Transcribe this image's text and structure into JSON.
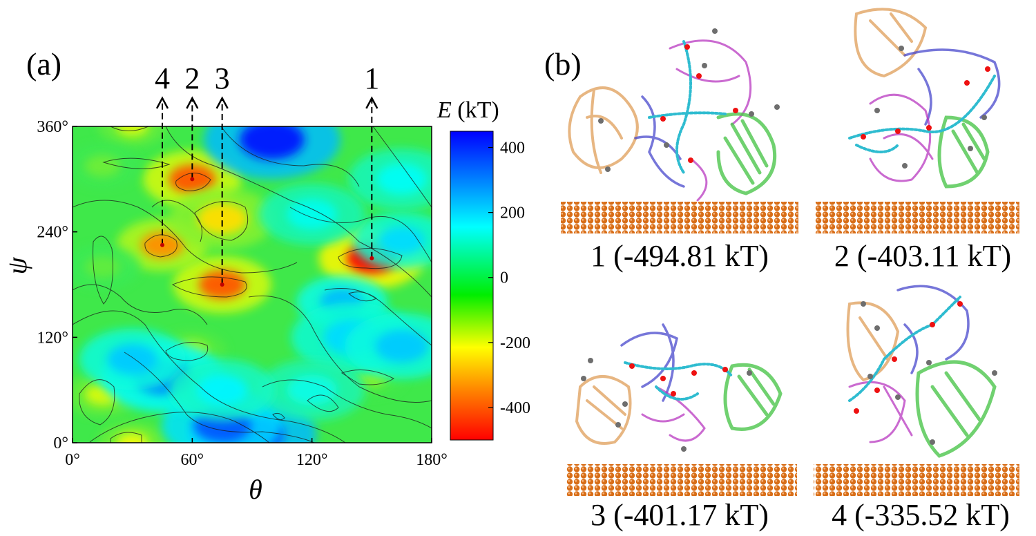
{
  "panels": {
    "a": "(a)",
    "b": "(b)"
  },
  "chart_data": {
    "type": "heatmap",
    "xlabel": "θ",
    "ylabel": "ψ",
    "xlim": [
      0,
      180
    ],
    "ylim": [
      0,
      360
    ],
    "x_ticks": [
      "0°",
      "60°",
      "120°",
      "180°"
    ],
    "x_tick_values": [
      0,
      60,
      120,
      180
    ],
    "y_ticks": [
      "0°",
      "120°",
      "240°",
      "360°"
    ],
    "y_tick_values": [
      0,
      120,
      240,
      360
    ],
    "colorbar": {
      "title_var": "E",
      "title_unit": " (kT)",
      "range": [
        -500,
        450
      ],
      "ticks": [
        "400",
        "200",
        "0",
        "-200",
        "-400"
      ],
      "tick_values": [
        400,
        200,
        0,
        -200,
        -400
      ],
      "colors": [
        "#ff0000",
        "#ff8c00",
        "#ffff00",
        "#00ee00",
        "#00ffff",
        "#0000ff"
      ]
    },
    "features": [
      {
        "theta": 150,
        "psi": 210,
        "energy": -494.81,
        "r": 14
      },
      {
        "theta": 60,
        "psi": 300,
        "energy": -403.11,
        "r": 13
      },
      {
        "theta": 75,
        "psi": 180,
        "energy": -401.17,
        "r": 13
      },
      {
        "theta": 45,
        "psi": 225,
        "energy": -335.52,
        "r": 12
      },
      {
        "theta": 75,
        "psi": 255,
        "energy": -250,
        "r": 14
      },
      {
        "theta": 15,
        "psi": 55,
        "energy": -180,
        "r": 10
      },
      {
        "theta": 30,
        "psi": 0,
        "energy": -200,
        "r": 9
      },
      {
        "theta": 30,
        "psi": 360,
        "energy": -180,
        "r": 9
      },
      {
        "theta": 60,
        "psi": 105,
        "energy": -150,
        "r": 9
      },
      {
        "theta": 15,
        "psi": 200,
        "energy": -80,
        "r": 10
      },
      {
        "theta": 15,
        "psi": 315,
        "energy": -90,
        "r": 10
      },
      {
        "theta": 150,
        "psi": 75,
        "energy": -120,
        "r": 9
      },
      {
        "theta": 100,
        "psi": 345,
        "energy": 430,
        "r": 18
      },
      {
        "theta": 90,
        "psi": 10,
        "energy": 430,
        "r": 17
      },
      {
        "theta": 75,
        "psi": 20,
        "energy": 350,
        "r": 16
      },
      {
        "theta": 45,
        "psi": 75,
        "energy": 300,
        "r": 16
      },
      {
        "theta": 30,
        "psi": 95,
        "energy": 220,
        "r": 14
      },
      {
        "theta": 135,
        "psi": 160,
        "energy": 240,
        "r": 12
      },
      {
        "theta": 165,
        "psi": 230,
        "energy": 200,
        "r": 13
      },
      {
        "theta": 140,
        "psi": 120,
        "energy": 200,
        "r": 16
      },
      {
        "theta": 165,
        "psi": 110,
        "energy": 220,
        "r": 15
      },
      {
        "theta": 165,
        "psi": 300,
        "energy": 150,
        "r": 14
      },
      {
        "theta": 120,
        "psi": 260,
        "energy": 140,
        "r": 14
      },
      {
        "theta": 120,
        "psi": 60,
        "energy": 130,
        "r": 14
      },
      {
        "theta": 75,
        "psi": 60,
        "energy": 170,
        "r": 14
      }
    ],
    "markers": [
      {
        "label": "4",
        "theta": 45,
        "psi": 225
      },
      {
        "label": "2",
        "theta": 60,
        "psi": 300
      },
      {
        "label": "3",
        "theta": 75,
        "psi": 180
      },
      {
        "label": "1",
        "theta": 150,
        "psi": 210
      }
    ]
  },
  "snapshots": [
    {
      "caption": "1 (-494.81 kT)"
    },
    {
      "caption": "2 (-403.11 kT)"
    },
    {
      "caption": "3 (-401.17 kT)"
    },
    {
      "caption": "4 (-335.52 kT)"
    }
  ],
  "colors": {
    "tan": "#e3a96c",
    "magenta": "#b838c0",
    "blue": "#4848cc",
    "green": "#4cc64c",
    "cyan": "#2fbcd0",
    "atom_red": "#ee1111",
    "gray": "#6e6e6e",
    "copper": "#d86e18"
  }
}
